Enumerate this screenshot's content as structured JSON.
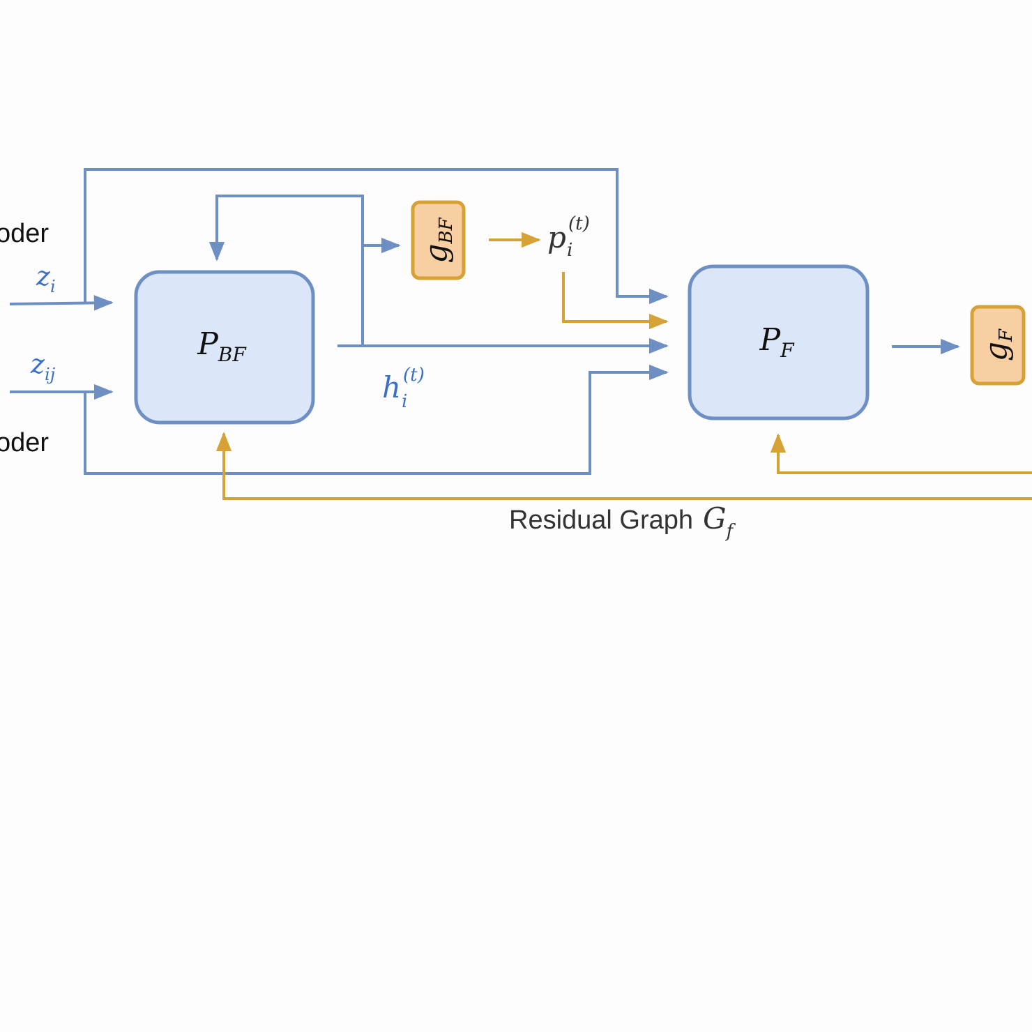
{
  "colors": {
    "blue_line": "#6e8fc4",
    "blue_fill": "#dbe6f8",
    "blue_text": "#3b6fc6",
    "orange_line": "#d6a236",
    "orange_fill": "#f8cfa2",
    "black": "#111111",
    "gray_text": "#333333"
  },
  "labels": {
    "encoder_top": "oder",
    "encoder_bottom": "oder",
    "z_i": {
      "base": "z",
      "sub": "i"
    },
    "z_ij": {
      "base": "z",
      "sub": "ij"
    },
    "p_bf": {
      "base": "P",
      "sub": "BF"
    },
    "p_f": {
      "base": "P",
      "sub": "F"
    },
    "g_bf": {
      "base": "g",
      "sub": "BF"
    },
    "g_f": {
      "base": "g",
      "sub": "F"
    },
    "h_i": {
      "base": "h",
      "sub": "i",
      "sup": "(t)"
    },
    "p_i": {
      "base": "p",
      "sub": "i",
      "sup": "(t)"
    },
    "residual": {
      "text": "Residual Graph",
      "base": "G",
      "sub": "f"
    }
  }
}
